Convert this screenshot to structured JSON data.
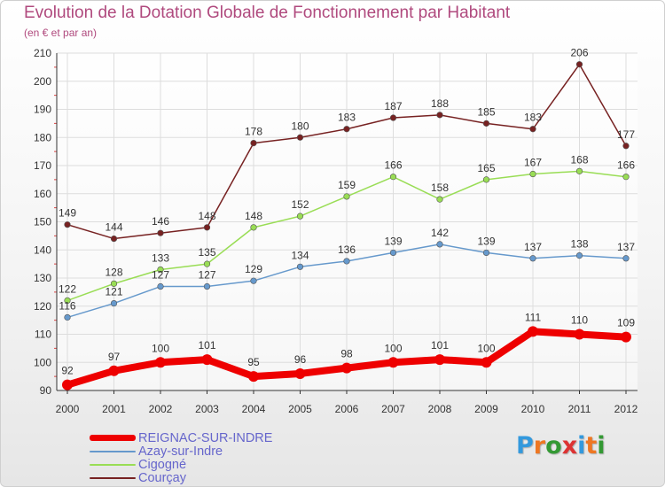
{
  "header": {
    "title": "Evolution de la Dotation Globale de Fonctionnement par Habitant",
    "subtitle": "(en € et par an)"
  },
  "logo": {
    "text": "Proxiti",
    "colors": [
      "#3399dd",
      "#ee7722",
      "#339933",
      "#dd3333",
      "#3399dd",
      "#ee7722",
      "#339933"
    ]
  },
  "chart_data": {
    "type": "line",
    "title": "Evolution de la Dotation Globale de Fonctionnement par Habitant",
    "subtitle": "(en € et par an)",
    "xlabel": "",
    "ylabel": "",
    "x": [
      "2000",
      "2001",
      "2002",
      "2003",
      "2004",
      "2005",
      "2006",
      "2007",
      "2008",
      "2009",
      "2010",
      "2011",
      "2012"
    ],
    "ylim": [
      90,
      210
    ],
    "yticks": [
      90,
      100,
      110,
      120,
      130,
      140,
      150,
      160,
      170,
      180,
      190,
      200,
      210
    ],
    "grid": true,
    "legend": "bottom-left",
    "series": [
      {
        "name": "REIGNAC-SUR-INDRE",
        "color": "#ee0000",
        "values": [
          92,
          97,
          100,
          101,
          95,
          96,
          98,
          100,
          101,
          100,
          111,
          110,
          109
        ]
      },
      {
        "name": "Azay-sur-Indre",
        "color": "#6699cc",
        "values": [
          116,
          121,
          127,
          127,
          129,
          134,
          136,
          139,
          142,
          139,
          137,
          138,
          137
        ]
      },
      {
        "name": "Cigogné",
        "color": "#99dd55",
        "values": [
          122,
          128,
          133,
          135,
          148,
          152,
          159,
          166,
          158,
          165,
          167,
          168,
          166
        ]
      },
      {
        "name": "Courçay",
        "color": "#772222",
        "values": [
          149,
          144,
          146,
          148,
          178,
          180,
          183,
          187,
          188,
          185,
          183,
          206,
          177
        ]
      }
    ]
  }
}
